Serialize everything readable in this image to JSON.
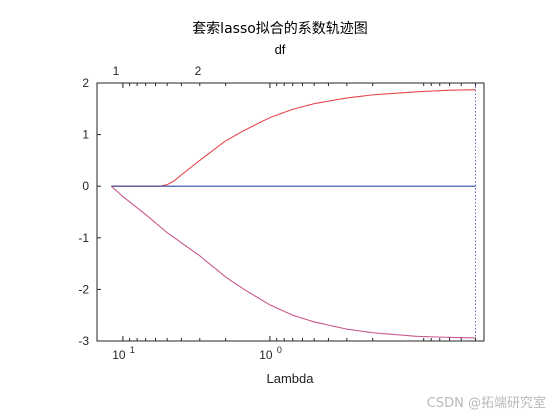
{
  "chart_data": {
    "type": "line",
    "title": "套索lasso拟合的系数轨迹图",
    "top_axis_label": "df",
    "top_ticks": [
      "1",
      "2"
    ],
    "xlabel": "Lambda",
    "x_scale": "log",
    "x_reversed": true,
    "xlim": [
      15.0,
      0.035
    ],
    "x_ticks": [
      {
        "value": 10,
        "label": "10^1",
        "base": "10",
        "exp": "1"
      },
      {
        "value": 1,
        "label": "10^0",
        "base": "10",
        "exp": "0"
      }
    ],
    "ylim": [
      -3,
      2
    ],
    "y_ticks": [
      2,
      1,
      0,
      -1,
      -2,
      -3
    ],
    "grid": false,
    "series": [
      {
        "color": "#e8474f",
        "lambda": [
          12.0,
          5.6,
          5.0,
          4.5,
          4.0,
          3.0,
          2.0,
          1.5,
          1.0,
          0.7,
          0.5,
          0.3,
          0.2,
          0.1,
          0.06,
          0.04
        ],
        "values": [
          0.0,
          0.0,
          0.03,
          0.1,
          0.22,
          0.5,
          0.88,
          1.08,
          1.33,
          1.49,
          1.6,
          1.71,
          1.77,
          1.83,
          1.86,
          1.87
        ]
      },
      {
        "color": "#2f4f9f",
        "lambda": [
          12.0,
          0.04
        ],
        "values": [
          0.0,
          0.0
        ]
      },
      {
        "color": "#c9588e",
        "lambda": [
          12.0,
          10.0,
          7.0,
          5.0,
          3.0,
          2.0,
          1.5,
          1.0,
          0.7,
          0.5,
          0.3,
          0.2,
          0.1,
          0.06,
          0.04
        ],
        "values": [
          0.0,
          -0.2,
          -0.55,
          -0.9,
          -1.35,
          -1.76,
          -2.0,
          -2.3,
          -2.5,
          -2.63,
          -2.77,
          -2.84,
          -2.91,
          -2.93,
          -2.94
        ]
      }
    ],
    "vline": {
      "lambda": 0.04,
      "color": "#6a5acd",
      "style": "dotted"
    }
  },
  "watermark": "CSDN @拓端研究室"
}
